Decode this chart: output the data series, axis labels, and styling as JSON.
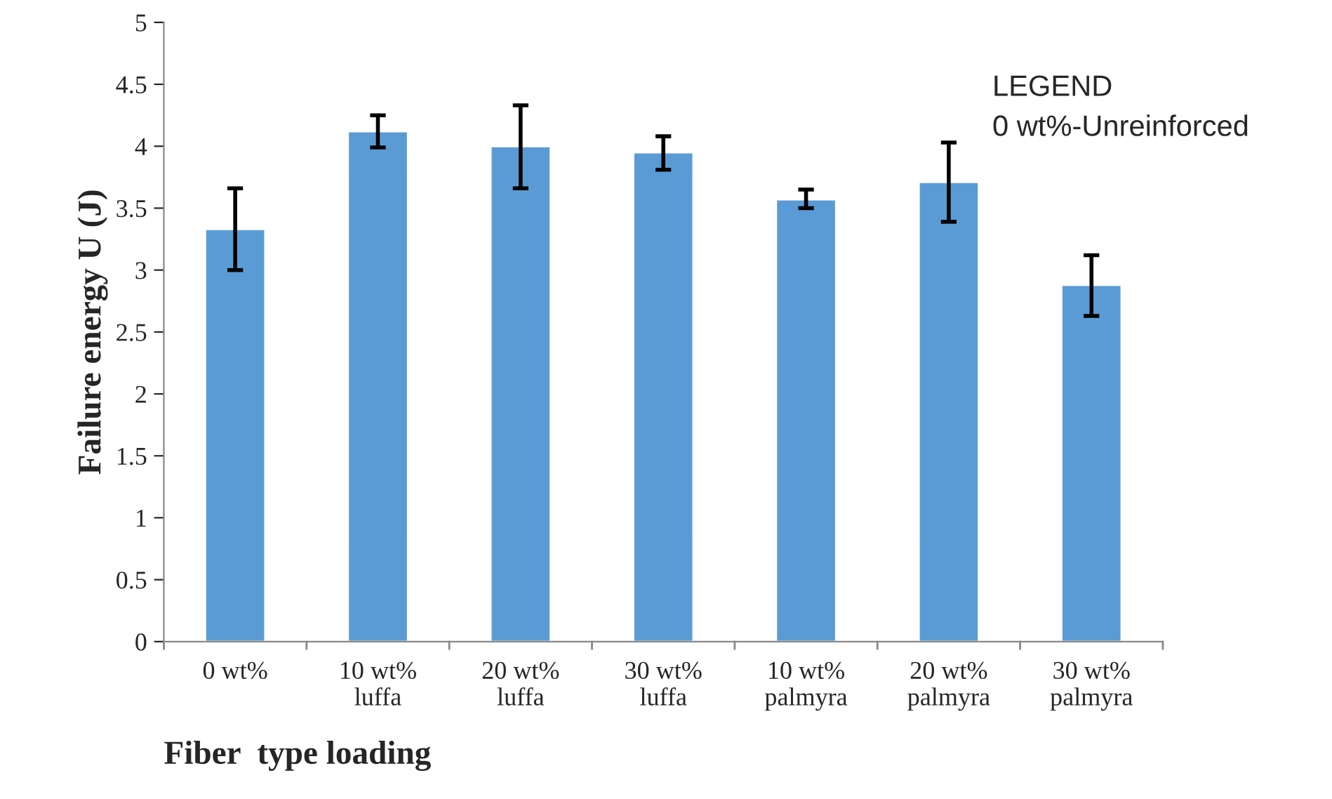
{
  "chart_data": {
    "type": "bar",
    "xlabel": "Fiber  type loading",
    "ylabel": "Failure energy U (J)",
    "categories": [
      "0 wt%",
      "10 wt%\nluffa",
      "20 wt%\nluffa",
      "30 wt%\nluffa",
      "10 wt%\npalmyra",
      "20 wt%\npalmyra",
      "30 wt%\npalmyra"
    ],
    "values": [
      3.33,
      4.12,
      4.0,
      3.95,
      3.57,
      3.71,
      2.88
    ],
    "errors": [
      [
        3.0,
        3.66
      ],
      [
        3.99,
        4.25
      ],
      [
        3.66,
        4.33
      ],
      [
        3.81,
        4.08
      ],
      [
        3.5,
        3.65
      ],
      [
        3.39,
        4.03
      ],
      [
        2.63,
        3.12
      ]
    ],
    "color": "#5b9bd5",
    "ylim": [
      0,
      5
    ],
    "yticks": [
      0,
      0.5,
      1,
      1.5,
      2,
      2.5,
      3,
      3.5,
      4,
      4.5,
      5
    ],
    "grid": false,
    "annotations": [
      "LEGEND\n0 wt%-Unreinforced"
    ]
  }
}
